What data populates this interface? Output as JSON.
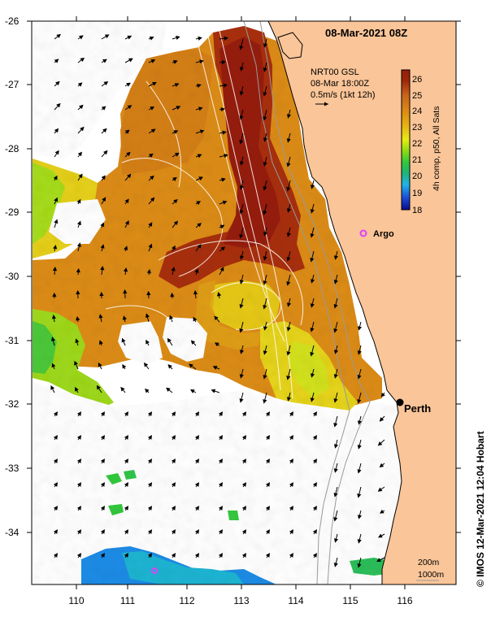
{
  "map": {
    "title": "08-Mar-2021 08Z",
    "product": "NRT00 GSL",
    "vector_time": "08-Mar 18:00Z",
    "vector_scale": "0.5m/s (1kt 12h)",
    "colorbar_title": "4h comp, p50, All Sats",
    "colorbar_ticks": [
      "26",
      "25",
      "24",
      "23",
      "22",
      "21",
      "20",
      "19",
      "18"
    ],
    "sst_range": [
      18,
      26
    ],
    "lat_ticks": [
      "-26",
      "-27",
      "-28",
      "-29",
      "-30",
      "-31",
      "-32",
      "-33",
      "-34"
    ],
    "lon_ticks": [
      "110",
      "111",
      "112",
      "113",
      "114",
      "115",
      "116"
    ],
    "places": {
      "perth": "Perth",
      "argo": "Argo"
    },
    "depth_contours": [
      "200m",
      "1000m"
    ],
    "credit": "© IMOS 12-Mar-2021 12:04 Hobart"
  },
  "colors": {
    "land": "#FAC598",
    "coast": "#000000",
    "argo": "#E040FB",
    "scale": [
      "#0A0A8C",
      "#1E50DC",
      "#1EB4E6",
      "#1EB478",
      "#32C83C",
      "#8CDC14",
      "#E6EB14",
      "#E6B414",
      "#DC8C14",
      "#C8641E",
      "#A0280A",
      "#961E0A"
    ]
  }
}
